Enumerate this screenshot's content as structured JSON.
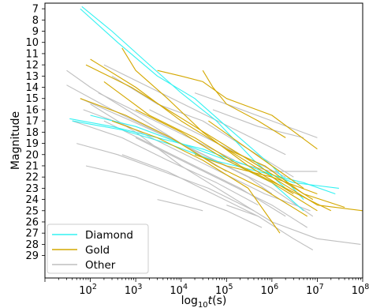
{
  "chart_data": {
    "type": "line",
    "title": "",
    "xlabel": "log10t(s)",
    "xlabel_parts": {
      "base": "log",
      "sub": "10",
      "var": "t",
      "unit": "(s)"
    },
    "ylabel": "Magnitude",
    "x_scale": "log",
    "xlim": [
      10,
      100000000
    ],
    "ylim": [
      31,
      6.5
    ],
    "y_inverted": true,
    "grid": false,
    "x_ticks": [
      {
        "exp": 2,
        "label_base": "10",
        "label_exp": "2"
      },
      {
        "exp": 3,
        "label_base": "10",
        "label_exp": "3"
      },
      {
        "exp": 4,
        "label_base": "10",
        "label_exp": "4"
      },
      {
        "exp": 5,
        "label_base": "10",
        "label_exp": "5"
      },
      {
        "exp": 6,
        "label_base": "10",
        "label_exp": "6"
      },
      {
        "exp": 7,
        "label_base": "10",
        "label_exp": "7"
      },
      {
        "exp": 8,
        "label_base": "10",
        "label_exp": "8"
      }
    ],
    "y_ticks": [
      7,
      8,
      9,
      10,
      11,
      12,
      13,
      14,
      15,
      16,
      17,
      18,
      19,
      20,
      21,
      22,
      23,
      24,
      25,
      26,
      27,
      28,
      29
    ],
    "legend": {
      "position": "lower-left",
      "entries": [
        "Diamond",
        "Gold",
        "Other"
      ]
    },
    "series": [
      {
        "name": "Other",
        "color": "#bfbfbf",
        "lines": [
          [
            [
              30,
              13.8
            ],
            [
              300,
              16
            ],
            [
              3000,
              18
            ],
            [
              30000,
              20
            ],
            [
              300000,
              22
            ],
            [
              1000000,
              23.5
            ]
          ],
          [
            [
              40,
              17
            ],
            [
              500,
              18.5
            ],
            [
              5000,
              20.5
            ],
            [
              60000,
              22.5
            ],
            [
              500000,
              24.5
            ]
          ],
          [
            [
              60,
              15
            ],
            [
              800,
              17
            ],
            [
              10000,
              19
            ],
            [
              100000,
              21
            ],
            [
              1000000,
              23
            ],
            [
              8000000,
              25.5
            ]
          ],
          [
            [
              50,
              19
            ],
            [
              400,
              20
            ],
            [
              4000,
              21.5
            ],
            [
              40000,
              23
            ],
            [
              400000,
              25
            ]
          ],
          [
            [
              80,
              21
            ],
            [
              1000,
              22
            ],
            [
              10000,
              23.5
            ],
            [
              100000,
              25
            ],
            [
              600000,
              26.5
            ]
          ],
          [
            [
              200,
              12
            ],
            [
              2000,
              14
            ],
            [
              20000,
              16
            ],
            [
              200000,
              18
            ],
            [
              2000000,
              20
            ]
          ],
          [
            [
              300,
              13
            ],
            [
              3000,
              15.5
            ],
            [
              30000,
              17
            ],
            [
              300000,
              19.5
            ],
            [
              3000000,
              22
            ]
          ],
          [
            [
              20000,
              14.5
            ],
            [
              100000,
              15.5
            ],
            [
              1000000,
              17
            ],
            [
              10000000,
              18.5
            ]
          ],
          [
            [
              50000,
              16
            ],
            [
              500000,
              17.5
            ],
            [
              5000000,
              18.5
            ]
          ],
          [
            [
              100000,
              20.5
            ],
            [
              1000000,
              21.5
            ],
            [
              10000000,
              21.5
            ]
          ],
          [
            [
              100,
              15.5
            ],
            [
              1000,
              18
            ],
            [
              10000,
              21
            ],
            [
              100000,
              23.5
            ],
            [
              1000000,
              26
            ],
            [
              10000000,
              27.5
            ],
            [
              90000000,
              28
            ]
          ],
          [
            [
              200,
              17
            ],
            [
              2000,
              19
            ],
            [
              20000,
              21
            ],
            [
              200000,
              23
            ],
            [
              2000000,
              25.5
            ]
          ],
          [
            [
              1000,
              18.5
            ],
            [
              10000,
              20.5
            ],
            [
              100000,
              22.5
            ],
            [
              1000000,
              24.5
            ],
            [
              6000000,
              26.5
            ]
          ],
          [
            [
              3000,
              24
            ],
            [
              10000,
              24.5
            ],
            [
              30000,
              25
            ]
          ],
          [
            [
              100000,
              24.5
            ],
            [
              500000,
              25.5
            ],
            [
              3000000,
              27.5
            ],
            [
              8000000,
              28.5
            ]
          ],
          [
            [
              30,
              12.5
            ],
            [
              100,
              14
            ],
            [
              1000,
              16.5
            ],
            [
              10000,
              19
            ],
            [
              100000,
              21.5
            ]
          ],
          [
            [
              70,
              16
            ],
            [
              700,
              17.5
            ],
            [
              7000,
              19.5
            ],
            [
              70000,
              21.5
            ],
            [
              700000,
              23.5
            ],
            [
              7000000,
              25
            ]
          ],
          [
            [
              500,
              20
            ],
            [
              5000,
              21.5
            ],
            [
              50000,
              23.5
            ],
            [
              500000,
              25.5
            ]
          ],
          [
            [
              150,
              14.5
            ],
            [
              1500,
              16.5
            ],
            [
              15000,
              18.5
            ],
            [
              150000,
              20.5
            ]
          ],
          [
            [
              2000,
              16
            ],
            [
              20000,
              18
            ],
            [
              200000,
              20
            ],
            [
              2000000,
              22
            ]
          ]
        ]
      },
      {
        "name": "Diamond",
        "color": "#33f2f2",
        "lines": [
          [
            [
              65,
              6.8
            ],
            [
              300,
              9
            ],
            [
              2000,
              12
            ],
            [
              10000,
              14.5
            ],
            [
              60000,
              17
            ],
            [
              400000,
              20.5
            ],
            [
              2000000,
              23
            ]
          ],
          [
            [
              60,
              7
            ],
            [
              400,
              10
            ],
            [
              3000,
              13
            ],
            [
              20000,
              15
            ],
            [
              100000,
              17.5
            ],
            [
              1000000,
              21
            ],
            [
              5000000,
              24
            ]
          ],
          [
            [
              35,
              16.8
            ],
            [
              300,
              17.5
            ],
            [
              3000,
              18.5
            ],
            [
              30000,
              19.5
            ],
            [
              300000,
              21
            ],
            [
              3000000,
              22.5
            ],
            [
              30000000,
              23
            ]
          ],
          [
            [
              40,
              17
            ],
            [
              500,
              17.8
            ],
            [
              5000,
              19
            ],
            [
              50000,
              20.5
            ],
            [
              500000,
              21.5
            ],
            [
              5000000,
              22.5
            ],
            [
              25000000,
              23.5
            ]
          ],
          [
            [
              100,
              16.5
            ],
            [
              1000,
              17.5
            ],
            [
              10000,
              19
            ],
            [
              100000,
              20.5
            ],
            [
              1000000,
              22.5
            ],
            [
              5000000,
              25
            ]
          ]
        ]
      },
      {
        "name": "Gold",
        "color": "#d4a800",
        "lines": [
          [
            [
              80,
              12
            ],
            [
              800,
              14
            ],
            [
              8000,
              16.5
            ],
            [
              80000,
              19
            ],
            [
              800000,
              21.5
            ],
            [
              8000000,
              24
            ]
          ],
          [
            [
              100,
              11.5
            ],
            [
              1000,
              14
            ],
            [
              10000,
              17
            ],
            [
              100000,
              19.5
            ],
            [
              1000000,
              22
            ],
            [
              10000000,
              24.5
            ],
            [
              100000000,
              25
            ]
          ],
          [
            [
              3000,
              12.5
            ],
            [
              10000,
              13
            ],
            [
              30000,
              13.5
            ],
            [
              100000,
              15
            ],
            [
              1000000,
              16.5
            ],
            [
              10000000,
              19.5
            ]
          ],
          [
            [
              30000,
              12.5
            ],
            [
              50000,
              14
            ],
            [
              100000,
              15.5
            ],
            [
              500000,
              17
            ],
            [
              2000000,
              18.5
            ]
          ],
          [
            [
              200,
              13.5
            ],
            [
              2000,
              16.5
            ],
            [
              20000,
              18.5
            ],
            [
              200000,
              21
            ],
            [
              2000000,
              23
            ],
            [
              20000000,
              25
            ]
          ],
          [
            [
              60,
              15
            ],
            [
              600,
              16.5
            ],
            [
              6000,
              18.5
            ],
            [
              60000,
              21
            ],
            [
              600000,
              23
            ],
            [
              6000000,
              25.5
            ]
          ],
          [
            [
              500,
              10.5
            ],
            [
              1000,
              12.5
            ],
            [
              5000,
              15
            ],
            [
              30000,
              18
            ],
            [
              300000,
              21
            ],
            [
              3000000,
              23.5
            ]
          ],
          [
            [
              1000,
              16
            ],
            [
              10000,
              18
            ],
            [
              100000,
              20.5
            ],
            [
              1000000,
              22.5
            ],
            [
              10000000,
              25
            ]
          ],
          [
            [
              40000,
              17
            ],
            [
              200000,
              19
            ],
            [
              1000000,
              21
            ],
            [
              5000000,
              23
            ]
          ],
          [
            [
              20000,
              20
            ],
            [
              100000,
              21
            ],
            [
              1000000,
              22
            ],
            [
              10000000,
              23.5
            ]
          ],
          [
            [
              300,
              17
            ],
            [
              3000,
              18.5
            ],
            [
              30000,
              20.5
            ],
            [
              300000,
              23
            ],
            [
              1000000,
              26
            ],
            [
              1500000,
              27
            ]
          ],
          [
            [
              100000,
              19.5
            ],
            [
              700000,
              21
            ],
            [
              5000000,
              23.5
            ],
            [
              40000000,
              24.7
            ]
          ]
        ]
      }
    ]
  }
}
